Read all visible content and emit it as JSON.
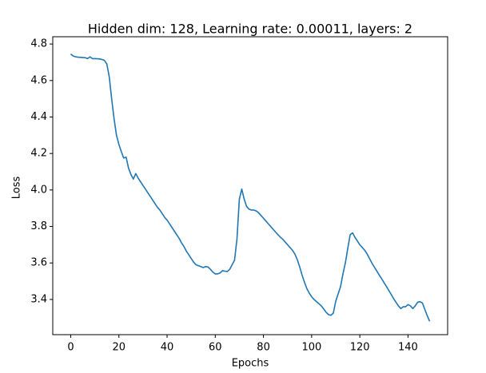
{
  "chart_data": {
    "type": "line",
    "title": "Hidden dim: 128, Learning rate: 0.00011, layers: 2",
    "xlabel": "Epochs",
    "ylabel": "Loss",
    "x": [
      0,
      1,
      2,
      3,
      4,
      5,
      6,
      7,
      8,
      9,
      10,
      11,
      12,
      13,
      14,
      15,
      16,
      17,
      18,
      19,
      20,
      21,
      22,
      23,
      24,
      25,
      26,
      27,
      28,
      29,
      30,
      31,
      32,
      33,
      34,
      35,
      36,
      37,
      38,
      39,
      40,
      41,
      42,
      43,
      44,
      45,
      46,
      47,
      48,
      49,
      50,
      51,
      52,
      53,
      54,
      55,
      56,
      57,
      58,
      59,
      60,
      61,
      62,
      63,
      64,
      65,
      66,
      67,
      68,
      69,
      70,
      71,
      72,
      73,
      74,
      75,
      76,
      77,
      78,
      79,
      80,
      81,
      82,
      83,
      84,
      85,
      86,
      87,
      88,
      89,
      90,
      91,
      92,
      93,
      94,
      95,
      96,
      97,
      98,
      99,
      100,
      101,
      102,
      103,
      104,
      105,
      106,
      107,
      108,
      109,
      110,
      111,
      112,
      113,
      114,
      115,
      116,
      117,
      118,
      119,
      120,
      121,
      122,
      123,
      124,
      125,
      126,
      127,
      128,
      129,
      130,
      131,
      132,
      133,
      134,
      135,
      136,
      137,
      138,
      139,
      140,
      141,
      142,
      143,
      144,
      145,
      146,
      147,
      148,
      149
    ],
    "series": [
      {
        "name": "Loss",
        "color": "#1f77b4",
        "values": [
          4.745,
          4.735,
          4.73,
          4.728,
          4.727,
          4.726,
          4.725,
          4.72,
          4.73,
          4.72,
          4.72,
          4.719,
          4.718,
          4.715,
          4.71,
          4.69,
          4.62,
          4.5,
          4.39,
          4.3,
          4.25,
          4.21,
          4.175,
          4.18,
          4.12,
          4.085,
          4.06,
          4.09,
          4.065,
          4.045,
          4.025,
          4.005,
          3.985,
          3.965,
          3.945,
          3.925,
          3.905,
          3.89,
          3.87,
          3.85,
          3.835,
          3.815,
          3.795,
          3.775,
          3.755,
          3.735,
          3.71,
          3.69,
          3.665,
          3.645,
          3.625,
          3.605,
          3.59,
          3.585,
          3.58,
          3.575,
          3.58,
          3.578,
          3.565,
          3.55,
          3.54,
          3.54,
          3.545,
          3.558,
          3.555,
          3.553,
          3.565,
          3.59,
          3.615,
          3.73,
          3.95,
          4.005,
          3.95,
          3.91,
          3.895,
          3.89,
          3.89,
          3.885,
          3.875,
          3.86,
          3.845,
          3.83,
          3.815,
          3.8,
          3.785,
          3.77,
          3.755,
          3.742,
          3.73,
          3.715,
          3.7,
          3.685,
          3.67,
          3.65,
          3.62,
          3.58,
          3.535,
          3.495,
          3.46,
          3.435,
          3.415,
          3.4,
          3.388,
          3.377,
          3.365,
          3.348,
          3.33,
          3.317,
          3.313,
          3.325,
          3.39,
          3.43,
          3.47,
          3.54,
          3.6,
          3.68,
          3.755,
          3.765,
          3.74,
          3.72,
          3.7,
          3.685,
          3.67,
          3.65,
          3.625,
          3.6,
          3.578,
          3.557,
          3.535,
          3.515,
          3.493,
          3.472,
          3.45,
          3.428,
          3.405,
          3.385,
          3.365,
          3.35,
          3.36,
          3.36,
          3.372,
          3.365,
          3.35,
          3.365,
          3.385,
          3.388,
          3.38,
          3.345,
          3.31,
          3.28
        ]
      }
    ],
    "xlim": [
      -7.45,
      156.45
    ],
    "ylim": [
      3.207,
      4.818
    ],
    "xticks": [
      0,
      20,
      40,
      60,
      80,
      100,
      120,
      140
    ],
    "yticks": [
      3.4,
      3.6,
      3.8,
      {
        "value": 4,
        "label": "4.0"
      },
      4.2,
      4.4,
      4.6,
      4.8
    ]
  }
}
